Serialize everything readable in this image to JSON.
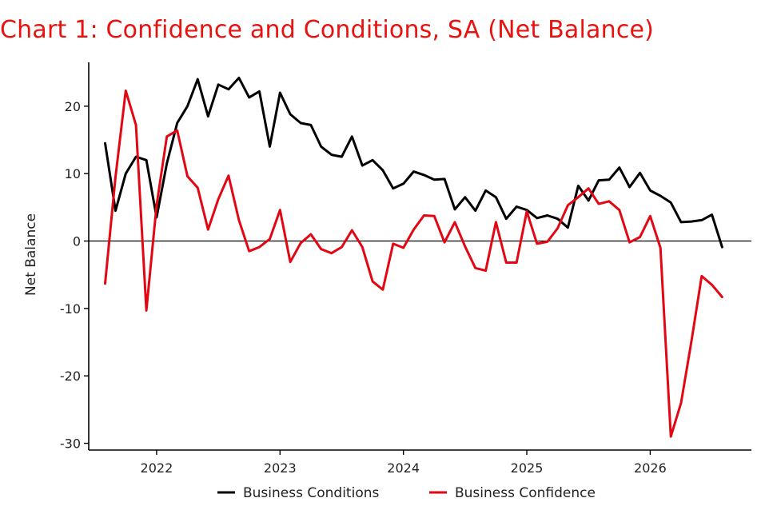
{
  "chart_data": {
    "type": "line",
    "title": "Chart 1: Confidence and Conditions, SA (Net Balance)",
    "ylabel": "Net Balance",
    "xlabel": "",
    "ylim": [
      -31,
      26.5
    ],
    "xlim": [
      2021.45,
      2026.82
    ],
    "yticks": [
      -30,
      -20,
      -10,
      0,
      10,
      20
    ],
    "xticks": [
      2022,
      2023,
      2024,
      2025,
      2026
    ],
    "xtick_labels": [
      "2022",
      "2023",
      "2024",
      "2025",
      "2026"
    ],
    "grid": false,
    "legend_position": "bottom",
    "reference_line_y": 0,
    "series": [
      {
        "name": "Business Conditions",
        "color": "#000000",
        "x": [
          2021.583,
          2021.667,
          2021.75,
          2021.833,
          2021.917,
          2022.0,
          2022.083,
          2022.167,
          2022.25,
          2022.333,
          2022.417,
          2022.5,
          2022.583,
          2022.667,
          2022.75,
          2022.833,
          2022.917,
          2023.0,
          2023.083,
          2023.167,
          2023.25,
          2023.333,
          2023.417,
          2023.5,
          2023.583,
          2023.667,
          2023.75,
          2023.833,
          2023.917,
          2024.0,
          2024.083,
          2024.167,
          2024.25,
          2024.333,
          2024.417,
          2024.5,
          2024.583,
          2024.667,
          2024.75,
          2024.833,
          2024.917,
          2025.0,
          2025.083,
          2025.167,
          2025.25,
          2025.333,
          2025.417,
          2025.5,
          2025.583,
          2025.667,
          2025.75,
          2025.833,
          2025.917,
          2026.0,
          2026.083,
          2026.167,
          2026.25,
          2026.333,
          2026.417,
          2026.5,
          2026.583
        ],
        "values": [
          14.5,
          4.5,
          10,
          12.5,
          12,
          3.5,
          11.5,
          17.5,
          20,
          24,
          18.5,
          23.2,
          22.5,
          24.2,
          21.3,
          22.2,
          14,
          22,
          18.8,
          17.5,
          17.2,
          14,
          12.8,
          12.5,
          15.5,
          11.2,
          12,
          10.5,
          7.8,
          8.5,
          10.3,
          9.8,
          9.1,
          9.2,
          4.7,
          6.5,
          4.5,
          7.5,
          6.5,
          3.3,
          5.1,
          4.6,
          3.4,
          3.8,
          3.3,
          2,
          8.2,
          6,
          9,
          9.1,
          10.9,
          8,
          10.1,
          7.5,
          6.7,
          5.7,
          2.8,
          2.9,
          3.1,
          3.9,
          -0.9
        ]
      },
      {
        "name": "Business Confidence",
        "color": "#e30613",
        "x": [
          2021.583,
          2021.667,
          2021.75,
          2021.833,
          2021.917,
          2022.0,
          2022.083,
          2022.167,
          2022.25,
          2022.333,
          2022.417,
          2022.5,
          2022.583,
          2022.667,
          2022.75,
          2022.833,
          2022.917,
          2023.0,
          2023.083,
          2023.167,
          2023.25,
          2023.333,
          2023.417,
          2023.5,
          2023.583,
          2023.667,
          2023.75,
          2023.833,
          2023.917,
          2024.0,
          2024.083,
          2024.167,
          2024.25,
          2024.333,
          2024.417,
          2024.5,
          2024.583,
          2024.667,
          2024.75,
          2024.833,
          2024.917,
          2025.0,
          2025.083,
          2025.167,
          2025.25,
          2025.333,
          2025.417,
          2025.5,
          2025.583,
          2025.667,
          2025.75,
          2025.833,
          2025.917,
          2026.0,
          2026.083,
          2026.167,
          2026.25,
          2026.333,
          2026.417,
          2026.5,
          2026.583
        ],
        "values": [
          -6.3,
          9.5,
          22.3,
          17.2,
          -10.3,
          5.3,
          15.5,
          16.4,
          9.6,
          7.9,
          1.7,
          6.2,
          9.7,
          3.1,
          -1.5,
          -0.9,
          0.3,
          4.6,
          -3.1,
          -0.3,
          1,
          -1.2,
          -1.8,
          -0.9,
          1.6,
          -0.9,
          -6,
          -7.2,
          -0.4,
          -1,
          1.7,
          3.8,
          3.7,
          -0.2,
          2.8,
          -0.8,
          -4,
          -4.4,
          2.8,
          -3.2,
          -3.2,
          4.4,
          -0.4,
          -0.1,
          1.9,
          5.3,
          6.5,
          7.8,
          5.5,
          5.9,
          4.6,
          -0.2,
          0.6,
          3.7,
          -1,
          -29,
          -24,
          -15,
          -5.2,
          -6.5,
          -8.3
        ]
      }
    ]
  }
}
